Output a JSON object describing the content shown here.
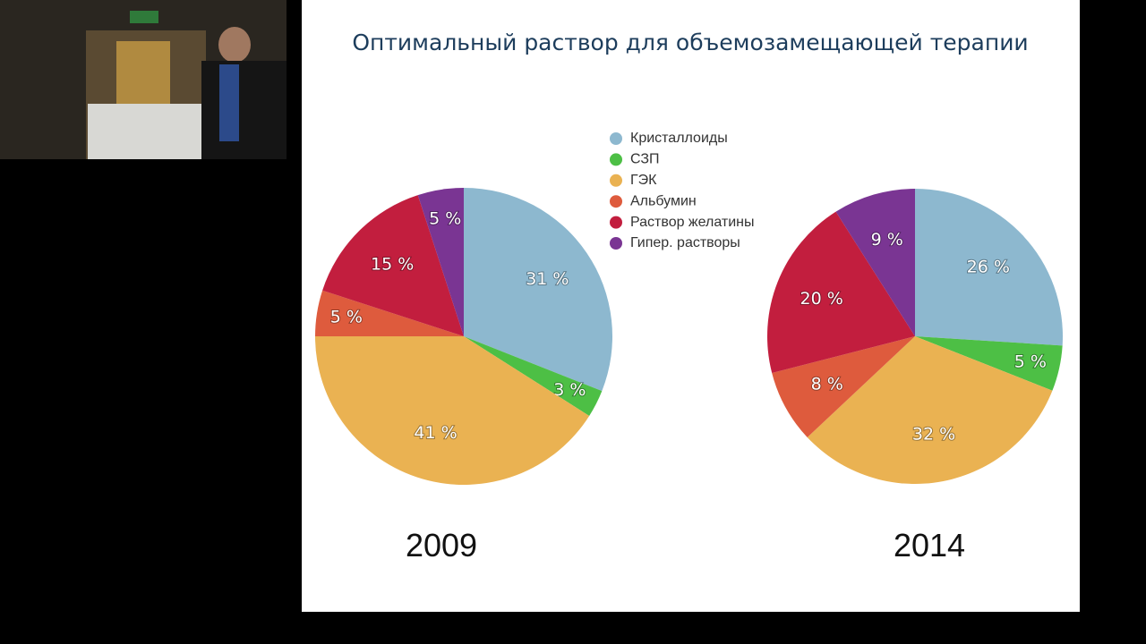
{
  "title": "Оптимальный раствор для объемозамещающей терапии",
  "chart_data": [
    {
      "type": "pie",
      "title": "2009",
      "categories": [
        "Кристаллоиды",
        "СЗП",
        "ГЭК",
        "Альбумин",
        "Раствор желатины",
        "Гипер. растворы"
      ],
      "values": [
        31,
        3,
        41,
        5,
        15,
        5
      ],
      "value_labels": [
        "31 %",
        "3 %",
        "41 %",
        "5 %",
        "15 %",
        "5 %"
      ],
      "colors": [
        "#8db8cf",
        "#4dbf45",
        "#eab252",
        "#de5b3d",
        "#c21e3e",
        "#7a3593"
      ]
    },
    {
      "type": "pie",
      "title": "2014",
      "categories": [
        "Кристаллоиды",
        "СЗП",
        "ГЭК",
        "Альбумин",
        "Раствор желатины",
        "Гипер. растворы"
      ],
      "values": [
        26,
        5,
        32,
        8,
        20,
        9
      ],
      "value_labels": [
        "26 %",
        "5 %",
        "32 %",
        "8 %",
        "20 %",
        "9 %"
      ],
      "colors": [
        "#8db8cf",
        "#4dbf45",
        "#eab252",
        "#de5b3d",
        "#c21e3e",
        "#7a3593"
      ]
    }
  ]
}
